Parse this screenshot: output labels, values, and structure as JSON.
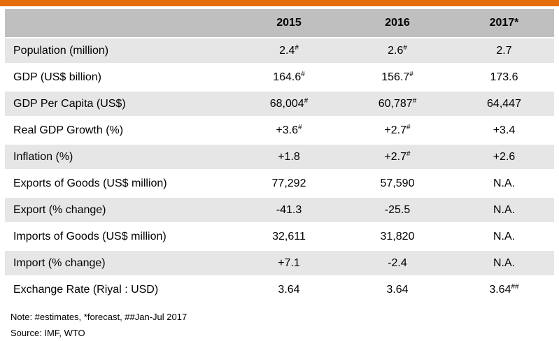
{
  "header": {
    "blank": "",
    "years": [
      "2015",
      "2016",
      "2017*"
    ]
  },
  "rows": [
    {
      "label": "Population (million)",
      "v2015": "2.4",
      "s2015": "#",
      "v2016": "2.6",
      "s2016": "#",
      "v2017": "2.7",
      "s2017": ""
    },
    {
      "label": "GDP (US$ billion)",
      "v2015": "164.6",
      "s2015": "#",
      "v2016": "156.7",
      "s2016": "#",
      "v2017": "173.6",
      "s2017": ""
    },
    {
      "label": "GDP Per Capita (US$)",
      "v2015": "68,004",
      "s2015": "#",
      "v2016": "60,787",
      "s2016": "#",
      "v2017": "64,447",
      "s2017": ""
    },
    {
      "label": "Real GDP Growth (%)",
      "v2015": "+3.6",
      "s2015": "#",
      "v2016": "+2.7",
      "s2016": "#",
      "v2017": "+3.4",
      "s2017": ""
    },
    {
      "label": "Inflation (%)",
      "v2015": "+1.8",
      "s2015": "",
      "v2016": "+2.7",
      "s2016": "#",
      "v2017": "+2.6",
      "s2017": ""
    },
    {
      "label": "Exports of Goods (US$ million)",
      "v2015": "77,292",
      "s2015": "",
      "v2016": "57,590",
      "s2016": "",
      "v2017": "N.A.",
      "s2017": ""
    },
    {
      "label": "Export (% change)",
      "v2015": "-41.3",
      "s2015": "",
      "v2016": "-25.5",
      "s2016": "",
      "v2017": "N.A.",
      "s2017": ""
    },
    {
      "label": "Imports of Goods (US$ million)",
      "v2015": "32,611",
      "s2015": "",
      "v2016": "31,820",
      "s2016": "",
      "v2017": "N.A.",
      "s2017": ""
    },
    {
      "label": "Import (% change)",
      "v2015": "+7.1",
      "s2015": "",
      "v2016": "-2.4",
      "s2016": "",
      "v2017": "N.A.",
      "s2017": ""
    },
    {
      "label": "Exchange Rate (Riyal : USD)",
      "v2015": "3.64",
      "s2015": "",
      "v2016": "3.64",
      "s2016": "",
      "v2017": "3.64",
      "s2017": "##"
    }
  ],
  "note": "Note: #estimates, *forecast, ##Jan-Jul 2017",
  "source": "Source: IMF, WTO",
  "colors": {
    "accent_bar": "#e46c0a",
    "header_bg": "#bfbfbf",
    "shaded_row_bg": "#e6e6e6"
  }
}
